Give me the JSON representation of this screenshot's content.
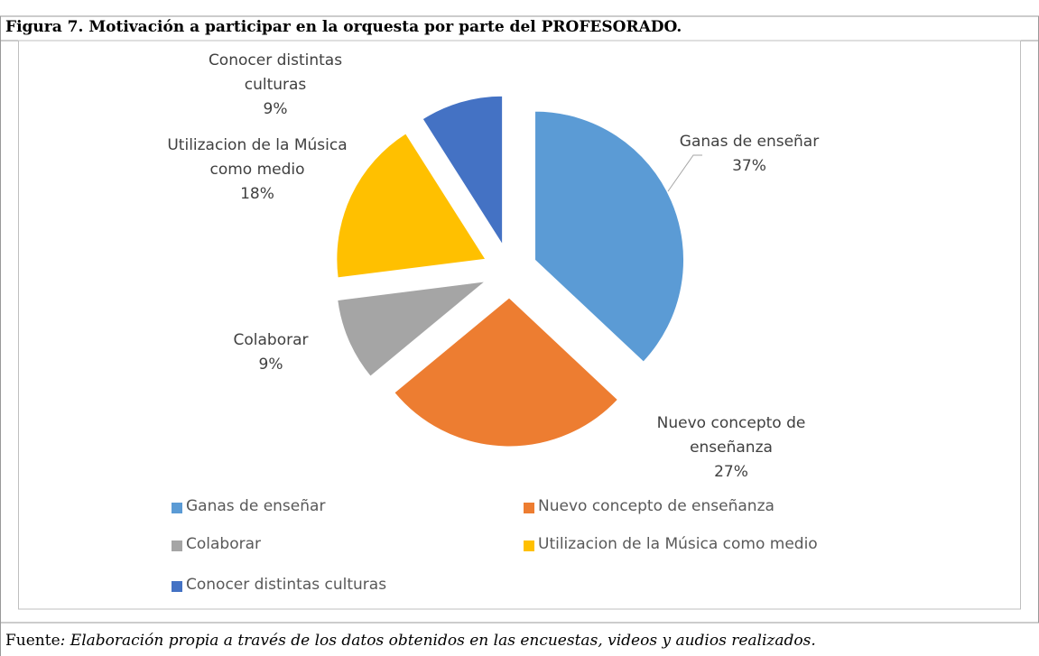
{
  "chart_data": {
    "type": "pie",
    "title": "Figura 7. Motivación a participar en la orquesta por parte del PROFESORADO.",
    "categories": [
      "Ganas de enseñar",
      "Nuevo concepto de enseñanza",
      "Colaborar",
      "Utilizacion de la Música como medio",
      "Conocer distintas culturas"
    ],
    "values": [
      37,
      27,
      9,
      18,
      9
    ],
    "value_labels": [
      "37%",
      "27%",
      "9%",
      "18%",
      "9%"
    ],
    "colors": [
      "#5b9bd5",
      "#ed7d31",
      "#a5a5a5",
      "#ffc000",
      "#4472c4"
    ],
    "legend": "bottom",
    "source_label": "Fuente",
    "source_text": ": Elaboración propia a través de los datos obtenidos en las encuestas, videos y audios realizados."
  }
}
